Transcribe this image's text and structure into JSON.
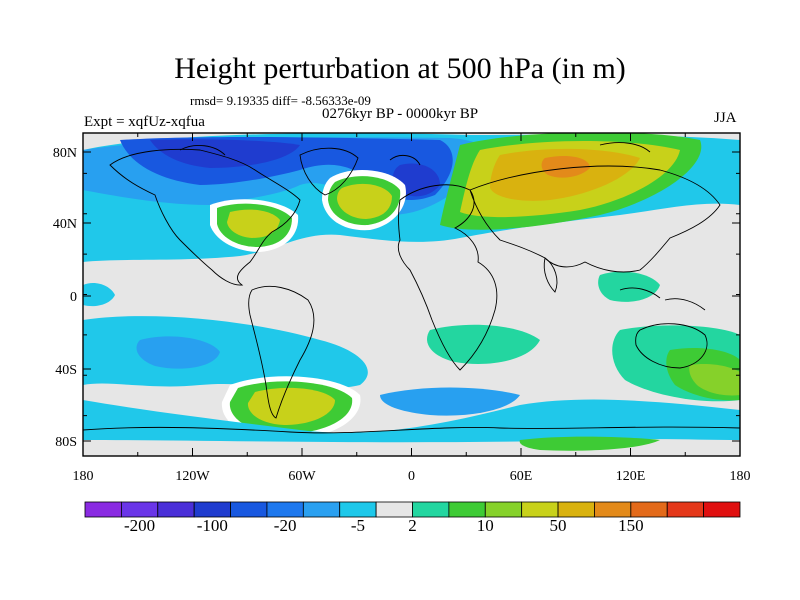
{
  "title": "Height perturbation at 500 hPa (in m)",
  "stats": "rmsd= 9.19335 diff= -8.56333e-09",
  "period": "0276kyr BP - 0000kyr BP",
  "experiment": "Expt = xqfUz-xqfua",
  "season": "JJA",
  "lat_ticks": [
    "80N",
    "40N",
    "0",
    "40S",
    "80S"
  ],
  "lon_ticks": [
    "180",
    "120W",
    "60W",
    "0",
    "60E",
    "120E",
    "180"
  ],
  "colorbar": {
    "labels": [
      "-200",
      "-100",
      "-20",
      "-5",
      "2",
      "10",
      "50",
      "150"
    ],
    "colors": [
      "#8a2be2",
      "#6a35e8",
      "#4a2fd8",
      "#1f3ccf",
      "#1858e0",
      "#1e78ee",
      "#2aa0f0",
      "#1ec8ea",
      "#e6e6e6",
      "#23d6a0",
      "#3ecb35",
      "#86d12a",
      "#c8d11a",
      "#d9b20f",
      "#e38a1a",
      "#e36a1a",
      "#e4381a",
      "#e01010"
    ]
  },
  "field_colors": {
    "neutral": "#e6e6e6",
    "light_blue": "#20c8ea",
    "mid_blue": "#28a0f0",
    "blue": "#1e78ee",
    "dark_blue": "#1858e0",
    "navy": "#1f3ccf",
    "teal": "#23d6a0",
    "green": "#3ecb35",
    "lime": "#86d12a",
    "yellow": "#c8d11a",
    "gold": "#d9b20f",
    "orange": "#e38a1a"
  }
}
